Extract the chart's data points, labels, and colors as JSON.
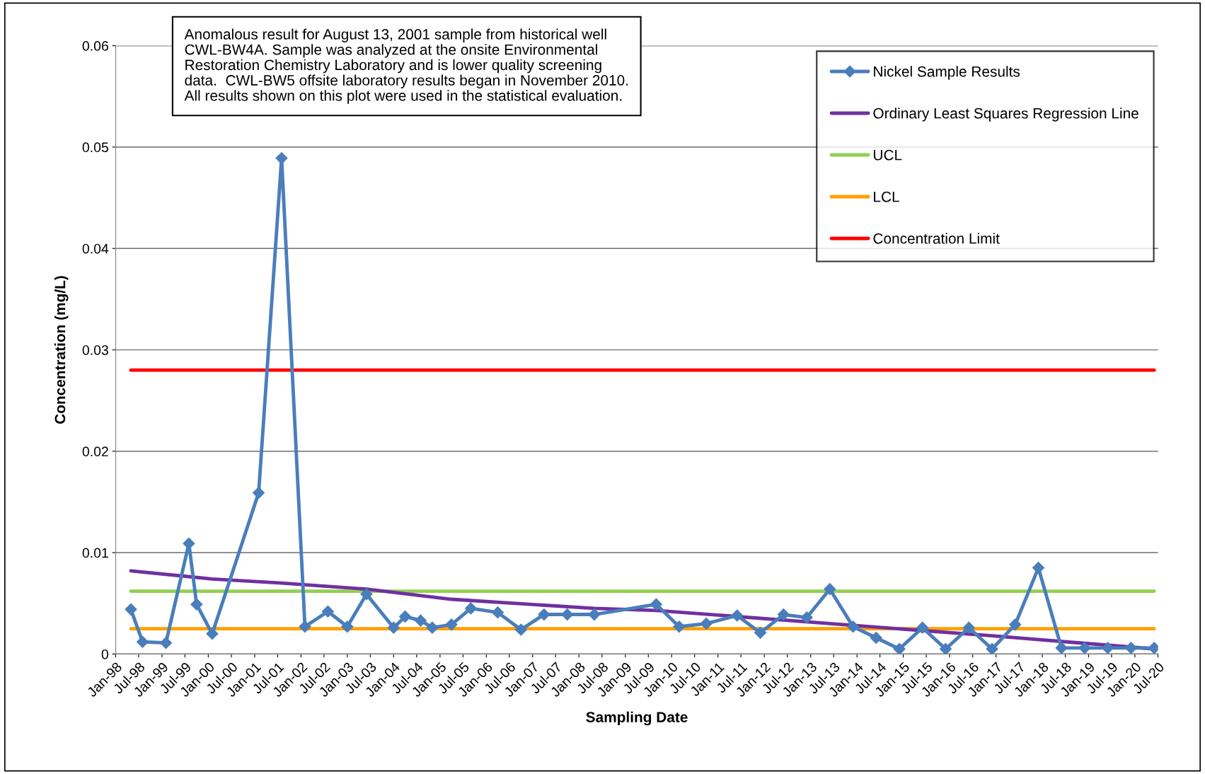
{
  "chart_data": {
    "type": "line",
    "xlabel": "Sampling Date",
    "ylabel": "Concentration (mg/L)",
    "annotations": [
      "Anomalous result for August 13, 2001 sample from historical well\nCWL-BW4A. Sample was analyzed at the onsite Environmental\nRestoration Chemistry Laboratory and is lower quality screening\ndata.  CWL-BW5 offsite laboratory results began in November 2010.\nAll results shown on this plot were used in the statistical evaluation."
    ],
    "series": [
      {
        "name": "Nickel Sample Results",
        "color": "#4a7ebb",
        "marker": "diamond",
        "x": [
          "1998-05",
          "1998-08",
          "1999-02",
          "1999-08",
          "1999-10",
          "2000-02",
          "2001-02",
          "2001-08",
          "2002-02",
          "2002-08",
          "2003-01",
          "2003-06",
          "2004-01",
          "2004-04",
          "2004-08",
          "2004-11",
          "2005-04",
          "2005-09",
          "2006-04",
          "2006-10",
          "2007-04",
          "2007-10",
          "2008-05",
          "2009-09",
          "2010-03",
          "2010-10",
          "2011-06",
          "2011-12",
          "2012-06",
          "2012-12",
          "2013-06",
          "2013-12",
          "2014-06",
          "2014-12",
          "2015-06",
          "2015-12",
          "2016-06",
          "2016-12",
          "2017-06",
          "2017-12",
          "2018-06",
          "2018-12",
          "2019-06",
          "2019-12",
          "2020-06"
        ],
        "values": [
          0.0044,
          0.0012,
          0.0011,
          0.0109,
          0.0049,
          0.002,
          0.0159,
          0.0489,
          0.0027,
          0.0042,
          0.0027,
          0.0059,
          0.0026,
          0.0037,
          0.0033,
          0.0026,
          0.0029,
          0.0045,
          0.0041,
          0.0024,
          0.0039,
          0.0039,
          0.0039,
          0.0049,
          0.0027,
          0.003,
          0.0038,
          0.0021,
          0.0039,
          0.0036,
          0.0064,
          0.0027,
          0.0016,
          0.0005,
          0.0026,
          0.0005,
          0.0026,
          0.0005,
          0.0029,
          0.0085,
          0.0006,
          0.0006,
          0.0006,
          0.0006,
          0.0006
        ]
      },
      {
        "name": "Ordinary Least Squares Regression Line",
        "color": "#7030a0",
        "x": [
          "1998-05",
          "2000-02",
          "2001-08",
          "2003-06",
          "2005-04",
          "2008-05",
          "2009-09",
          "2013-06",
          "2016-12",
          "2020-06"
        ],
        "values": [
          0.0082,
          0.0074,
          0.007,
          0.0064,
          0.0054,
          0.0045,
          0.0043,
          0.003,
          0.0018,
          0.0005
        ]
      },
      {
        "name": "UCL",
        "color": "#92d050",
        "x": [
          "1998-05",
          "2020-06"
        ],
        "values": [
          0.0062,
          0.0062
        ]
      },
      {
        "name": "LCL",
        "color": "#ffa000",
        "x": [
          "1998-05",
          "2020-06"
        ],
        "values": [
          0.0025,
          0.0025
        ]
      },
      {
        "name": "Concentration Limit",
        "color": "#ff0000",
        "x": [
          "1998-05",
          "2020-06"
        ],
        "values": [
          0.028,
          0.028
        ]
      }
    ],
    "xlim": [
      "1998-01",
      "2020-07"
    ],
    "xticks": [
      {
        "value": "1998-01",
        "label": "Jan-98"
      },
      {
        "value": "1998-07",
        "label": "Jul-98"
      },
      {
        "value": "1999-01",
        "label": "Jan-99"
      },
      {
        "value": "1999-07",
        "label": "Jul-99"
      },
      {
        "value": "2000-01",
        "label": "Jan-00"
      },
      {
        "value": "2000-07",
        "label": "Jul-00"
      },
      {
        "value": "2001-01",
        "label": "Jan-01"
      },
      {
        "value": "2001-07",
        "label": "Jul-01"
      },
      {
        "value": "2002-01",
        "label": "Jan-02"
      },
      {
        "value": "2002-07",
        "label": "Jul-02"
      },
      {
        "value": "2003-01",
        "label": "Jan-03"
      },
      {
        "value": "2003-07",
        "label": "Jul-03"
      },
      {
        "value": "2004-01",
        "label": "Jan-04"
      },
      {
        "value": "2004-07",
        "label": "Jul-04"
      },
      {
        "value": "2005-01",
        "label": "Jan-05"
      },
      {
        "value": "2005-07",
        "label": "Jul-05"
      },
      {
        "value": "2006-01",
        "label": "Jan-06"
      },
      {
        "value": "2006-07",
        "label": "Jul-06"
      },
      {
        "value": "2007-01",
        "label": "Jan-07"
      },
      {
        "value": "2007-07",
        "label": "Jul-07"
      },
      {
        "value": "2008-01",
        "label": "Jan-08"
      },
      {
        "value": "2008-07",
        "label": "Jul-08"
      },
      {
        "value": "2009-01",
        "label": "Jan-09"
      },
      {
        "value": "2009-07",
        "label": "Jul-09"
      },
      {
        "value": "2010-01",
        "label": "Jan-10"
      },
      {
        "value": "2010-07",
        "label": "Jul-10"
      },
      {
        "value": "2011-01",
        "label": "Jan-11"
      },
      {
        "value": "2011-07",
        "label": "Jul-11"
      },
      {
        "value": "2012-01",
        "label": "Jan-12"
      },
      {
        "value": "2012-07",
        "label": "Jul-12"
      },
      {
        "value": "2013-01",
        "label": "Jan-13"
      },
      {
        "value": "2013-07",
        "label": "Jul-13"
      },
      {
        "value": "2014-01",
        "label": "Jan-14"
      },
      {
        "value": "2014-07",
        "label": "Jul-14"
      },
      {
        "value": "2015-01",
        "label": "Jan-15"
      },
      {
        "value": "2015-07",
        "label": "Jul-15"
      },
      {
        "value": "2016-01",
        "label": "Jan-16"
      },
      {
        "value": "2016-07",
        "label": "Jul-16"
      },
      {
        "value": "2017-01",
        "label": "Jan-17"
      },
      {
        "value": "2017-07",
        "label": "Jul-17"
      },
      {
        "value": "2018-01",
        "label": "Jan-18"
      },
      {
        "value": "2018-07",
        "label": "Jul-18"
      },
      {
        "value": "2019-01",
        "label": "Jan-19"
      },
      {
        "value": "2019-07",
        "label": "Jul-19"
      },
      {
        "value": "2020-01",
        "label": "Jan-20"
      },
      {
        "value": "2020-07",
        "label": "Jul-20"
      }
    ],
    "ylim": [
      0,
      0.06
    ],
    "yticks": [
      0,
      0.01,
      0.02,
      0.03,
      0.04,
      0.05,
      0.06
    ],
    "grid": "y",
    "legend": "top right"
  }
}
